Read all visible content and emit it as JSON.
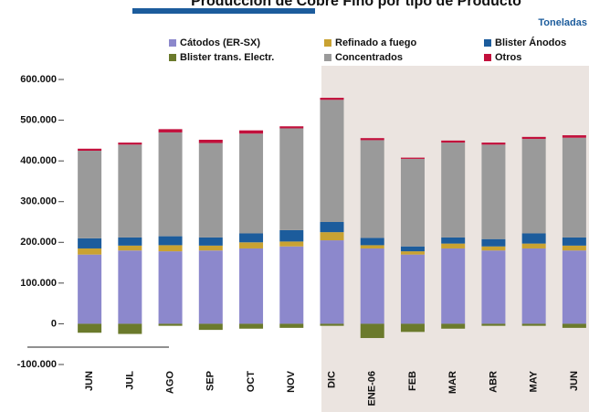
{
  "chart_data": {
    "type": "stacked_bar",
    "title": "Producción de Cobre Fino por tipo de Producto",
    "unit_label": "Toneladas",
    "categories": [
      "JUN",
      "JUL",
      "AGO",
      "SEP",
      "OCT",
      "NOV",
      "DIC",
      "ENE-06",
      "FEB",
      "MAR",
      "ABR",
      "MAY",
      "JUN"
    ],
    "series": [
      {
        "name": "Cátodos (ER-SX)",
        "color": "#8c88cc",
        "values": [
          170000,
          180000,
          178000,
          180000,
          185000,
          190000,
          205000,
          185000,
          170000,
          185000,
          180000,
          185000,
          180000
        ]
      },
      {
        "name": "Refinado a fuego",
        "color": "#c9a232",
        "values": [
          15000,
          12000,
          15000,
          12000,
          15000,
          12000,
          20000,
          8000,
          8000,
          12000,
          10000,
          12000,
          12000
        ]
      },
      {
        "name": "Blister Ánodos",
        "color": "#1c5c9c",
        "values": [
          25000,
          20000,
          22000,
          20000,
          22000,
          28000,
          25000,
          18000,
          12000,
          15000,
          18000,
          25000,
          20000
        ]
      },
      {
        "name": "Blister trans. Electr.",
        "color": "#6b7a2c",
        "values": [
          -22000,
          -25000,
          -5000,
          -15000,
          -12000,
          -10000,
          -5000,
          -35000,
          -20000,
          -12000,
          -5000,
          -5000,
          -10000
        ]
      },
      {
        "name": "Concentrados",
        "color": "#9a9a9a",
        "values": [
          215000,
          228000,
          255000,
          232000,
          245000,
          250000,
          300000,
          240000,
          215000,
          233000,
          232000,
          232000,
          245000
        ]
      },
      {
        "name": "Otros",
        "color": "#c2103c",
        "values": [
          5000,
          5000,
          8000,
          8000,
          8000,
          5000,
          5000,
          5000,
          3000,
          5000,
          5000,
          5000,
          6000
        ]
      }
    ],
    "ylim": [
      -100000,
      600000
    ],
    "yticks": [
      {
        "value": -100000,
        "label": "-100.000"
      },
      0,
      {
        "value": 100000,
        "label": "100.000"
      },
      {
        "value": 200000,
        "label": "200.000"
      },
      {
        "value": 300000,
        "label": "300.000"
      },
      {
        "value": 400000,
        "label": "400.000"
      },
      {
        "value": 500000,
        "label": "500.000"
      },
      {
        "value": 600000,
        "label": "600.000"
      }
    ],
    "grid": false
  }
}
